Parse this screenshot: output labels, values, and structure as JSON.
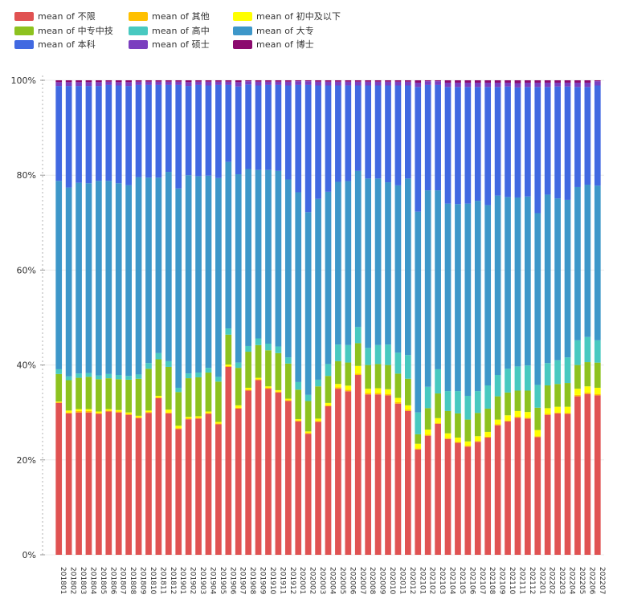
{
  "chart_data": {
    "type": "bar",
    "stacked": true,
    "normalized": true,
    "ylim": [
      0,
      100
    ],
    "yticks": [
      0,
      20,
      40,
      60,
      80,
      100
    ],
    "ytick_labels": [
      "0%",
      "20%",
      "40%",
      "60%",
      "80%",
      "100%"
    ],
    "legend_position": "top-left",
    "categories": [
      "201801",
      "201802",
      "201803",
      "201804",
      "201805",
      "201806",
      "201807",
      "201808",
      "201809",
      "201810",
      "201811",
      "201812",
      "201901",
      "201902",
      "201903",
      "201904",
      "201905",
      "201906",
      "201907",
      "201908",
      "201909",
      "201910",
      "201911",
      "201912",
      "202001",
      "202002",
      "202003",
      "202004",
      "202005",
      "202006",
      "202007",
      "202008",
      "202009",
      "202010",
      "202011",
      "202012",
      "202101",
      "202102",
      "202103",
      "202104",
      "202105",
      "202106",
      "202107",
      "202108",
      "202109",
      "202110",
      "202111",
      "202112",
      "202201",
      "202202",
      "202203",
      "202204",
      "202205",
      "202206",
      "202207"
    ],
    "x_labels_shown": [
      "201801",
      "201802",
      "201803",
      "201804",
      "201805",
      "201806",
      "201807",
      "201808",
      "201809",
      "201810",
      "201811",
      "201812",
      "201901",
      "201902",
      "201903",
      "201904",
      "201905",
      "201906",
      "201907",
      "201908",
      "201909",
      "201910",
      "201911",
      "201912",
      "202001",
      "202002",
      "202003",
      "202004",
      "202005",
      "202006",
      "202007",
      "202008",
      "202009",
      "202010",
      "202011",
      "202012",
      "202101",
      "202102",
      "202103",
      "202104",
      "202105",
      "202106",
      "202107",
      "202108",
      "202109",
      "202110",
      "202111",
      "202112",
      "202201",
      "202202",
      "202203",
      "202204",
      "202205",
      "202206",
      "202207"
    ],
    "series": [
      {
        "name": "mean of 不限",
        "color": "#e05252",
        "values": [
          32.0,
          29.8,
          30.0,
          30.0,
          29.7,
          30.2,
          30.0,
          29.5,
          28.8,
          29.9,
          33.0,
          29.8,
          26.5,
          28.7,
          28.7,
          29.7,
          27.5,
          39.6,
          30.8,
          34.6,
          36.8,
          35.0,
          34.2,
          32.4,
          28.1,
          25.5,
          28.0,
          31.3,
          35.0,
          34.7,
          37.9,
          33.8,
          33.8,
          33.6,
          31.8,
          30.3,
          22.2,
          25.1,
          27.6,
          24.4,
          23.6,
          22.8,
          23.8,
          24.7,
          27.3,
          28.1,
          28.9,
          28.7,
          24.8,
          29.5,
          29.8,
          29.7,
          33.4,
          33.9,
          33.6
        ]
      },
      {
        "name": "mean of 其他",
        "color": "#ffc000",
        "values": [
          0.2,
          0.2,
          0.3,
          0.3,
          0.2,
          0.2,
          0.2,
          0.2,
          0.2,
          0.2,
          0.2,
          0.2,
          0.2,
          0.2,
          0.2,
          0.2,
          0.2,
          0.2,
          0.2,
          0.2,
          0.2,
          0.2,
          0.2,
          0.2,
          0.2,
          0.2,
          0.2,
          0.2,
          0.3,
          0.3,
          0.3,
          0.3,
          0.3,
          0.3,
          0.3,
          0.3,
          0.2,
          0.2,
          0.2,
          0.2,
          0.2,
          0.2,
          0.2,
          0.2,
          0.2,
          0.2,
          0.2,
          0.2,
          0.2,
          0.2,
          0.2,
          0.2,
          0.3,
          0.3,
          0.3
        ]
      },
      {
        "name": "mean of 初中及以下",
        "color": "#ffff00",
        "values": [
          0.1,
          0.4,
          0.4,
          0.4,
          0.3,
          0.3,
          0.3,
          0.3,
          0.3,
          0.3,
          0.3,
          0.6,
          0.5,
          0.3,
          0.3,
          0.3,
          0.3,
          0.3,
          0.5,
          0.4,
          0.3,
          0.3,
          0.3,
          0.3,
          0.3,
          0.3,
          0.5,
          0.5,
          0.7,
          0.9,
          1.6,
          0.9,
          1.0,
          1.0,
          0.9,
          0.9,
          1.0,
          1.1,
          1.0,
          1.0,
          0.9,
          0.9,
          1.0,
          1.0,
          1.0,
          1.1,
          1.2,
          1.2,
          1.3,
          1.2,
          1.2,
          1.3,
          1.3,
          1.3,
          1.3
        ]
      },
      {
        "name": "mean of 中专中技",
        "color": "#8dc21f",
        "values": [
          5.8,
          6.4,
          6.6,
          6.8,
          6.8,
          6.5,
          6.5,
          6.9,
          7.8,
          8.8,
          7.7,
          9.0,
          7.1,
          8.2,
          8.2,
          8.2,
          8.5,
          6.3,
          7.9,
          7.6,
          6.9,
          7.6,
          7.8,
          7.4,
          6.2,
          6.4,
          6.8,
          5.7,
          4.8,
          4.9,
          4.8,
          5.0,
          5.1,
          5.1,
          5.1,
          5.6,
          2.0,
          4.5,
          5.2,
          4.7,
          5.1,
          4.6,
          4.9,
          4.9,
          4.9,
          4.8,
          4.3,
          4.5,
          4.7,
          4.8,
          4.8,
          5.0,
          5.0,
          5.1,
          5.3
        ]
      },
      {
        "name": "mean of 高中",
        "color": "#48c9c0",
        "values": [
          1.0,
          0.8,
          0.9,
          0.8,
          0.8,
          0.9,
          0.9,
          0.8,
          0.9,
          1.2,
          1.3,
          1.2,
          0.9,
          1.0,
          1.0,
          1.0,
          1.0,
          1.3,
          1.1,
          1.2,
          1.4,
          1.4,
          1.4,
          1.3,
          1.6,
          1.3,
          1.4,
          2.5,
          3.5,
          3.7,
          3.4,
          3.6,
          4.0,
          4.3,
          4.4,
          5.0,
          4.6,
          4.5,
          5.1,
          4.2,
          4.7,
          5.0,
          4.6,
          4.9,
          4.5,
          5.0,
          5.1,
          5.3,
          4.8,
          4.7,
          5.0,
          5.4,
          5.2,
          5.3,
          4.7
        ]
      },
      {
        "name": "mean of 大专",
        "color": "#3d97c9",
        "values": [
          39.7,
          39.8,
          40.2,
          40.0,
          41.0,
          40.7,
          40.4,
          40.2,
          41.6,
          39.1,
          37.0,
          39.9,
          42.0,
          42.0,
          41.4,
          40.5,
          41.9,
          35.1,
          39.7,
          37.3,
          35.5,
          36.6,
          37.0,
          37.5,
          40.0,
          38.5,
          38.1,
          36.3,
          34.3,
          34.8,
          32.9,
          35.7,
          35.1,
          34.2,
          35.2,
          37.2,
          42.3,
          41.4,
          37.7,
          39.5,
          39.4,
          40.5,
          40.1,
          38.0,
          37.8,
          36.2,
          35.6,
          35.6,
          36.2,
          35.5,
          34.1,
          33.2,
          32.3,
          32.1,
          32.6
        ]
      },
      {
        "name": "mean of 本科",
        "color": "#4169e1",
        "values": [
          20.0,
          21.4,
          20.4,
          20.5,
          20.0,
          20.2,
          20.6,
          20.9,
          19.4,
          19.5,
          19.5,
          18.3,
          21.8,
          18.9,
          19.2,
          19.0,
          19.6,
          16.2,
          18.5,
          17.8,
          17.8,
          17.9,
          18.1,
          19.8,
          22.6,
          26.8,
          23.9,
          22.4,
          20.3,
          20.3,
          18.0,
          19.6,
          19.6,
          20.4,
          21.0,
          19.6,
          26.3,
          22.2,
          22.2,
          24.6,
          24.7,
          24.6,
          24.0,
          24.9,
          22.9,
          23.3,
          23.2,
          23.1,
          26.6,
          22.7,
          23.6,
          23.9,
          21.1,
          20.6,
          21.1
        ]
      },
      {
        "name": "mean of 硕士",
        "color": "#7b3fbf",
        "values": [
          0.8,
          0.8,
          0.8,
          0.8,
          0.8,
          0.7,
          0.7,
          0.8,
          0.7,
          0.7,
          0.7,
          0.7,
          0.7,
          0.8,
          0.7,
          0.8,
          0.7,
          0.7,
          0.9,
          0.7,
          0.8,
          0.7,
          0.7,
          0.8,
          0.8,
          0.8,
          0.8,
          0.8,
          0.8,
          0.8,
          0.8,
          0.8,
          0.8,
          0.8,
          0.8,
          0.8,
          0.9,
          0.8,
          0.8,
          0.9,
          0.9,
          0.9,
          0.9,
          0.9,
          0.9,
          0.8,
          0.9,
          0.9,
          0.9,
          0.9,
          0.8,
          0.8,
          0.9,
          0.9,
          0.9
        ]
      },
      {
        "name": "mean of 博士",
        "color": "#8b0a6e",
        "values": [
          0.4,
          0.4,
          0.4,
          0.4,
          0.4,
          0.3,
          0.4,
          0.4,
          0.3,
          0.3,
          0.3,
          0.3,
          0.3,
          0.4,
          0.3,
          0.3,
          0.3,
          0.3,
          0.4,
          0.2,
          0.3,
          0.3,
          0.3,
          0.3,
          0.2,
          0.2,
          0.3,
          0.3,
          0.3,
          0.3,
          0.3,
          0.3,
          0.3,
          0.3,
          0.3,
          0.3,
          0.5,
          0.2,
          0.2,
          0.5,
          0.5,
          0.5,
          0.5,
          0.5,
          0.5,
          0.5,
          0.6,
          0.5,
          0.5,
          0.5,
          0.5,
          0.5,
          0.5,
          0.5,
          0.2
        ]
      }
    ]
  }
}
